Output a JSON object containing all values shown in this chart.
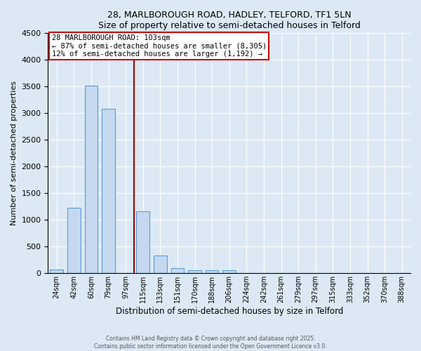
{
  "title": "28, MARLBOROUGH ROAD, HADLEY, TELFORD, TF1 5LN",
  "subtitle": "Size of property relative to semi-detached houses in Telford",
  "xlabel": "Distribution of semi-detached houses by size in Telford",
  "ylabel": "Number of semi-detached properties",
  "categories": [
    "24sqm",
    "42sqm",
    "60sqm",
    "79sqm",
    "97sqm",
    "115sqm",
    "133sqm",
    "151sqm",
    "170sqm",
    "188sqm",
    "206sqm",
    "224sqm",
    "242sqm",
    "261sqm",
    "279sqm",
    "297sqm",
    "315sqm",
    "333sqm",
    "352sqm",
    "370sqm",
    "388sqm"
  ],
  "values": [
    75,
    1220,
    3510,
    3080,
    0,
    1165,
    330,
    95,
    60,
    55,
    55,
    0,
    0,
    0,
    0,
    0,
    0,
    0,
    0,
    0,
    0
  ],
  "bar_color": "#c5d8f0",
  "bar_edge_color": "#5b9bd5",
  "vline_color": "#a00000",
  "vline_x_index": 4,
  "annotation_title": "28 MARLBOROUGH ROAD: 103sqm",
  "annotation_line1": "← 87% of semi-detached houses are smaller (8,305)",
  "annotation_line2": "12% of semi-detached houses are larger (1,192) →",
  "annotation_box_facecolor": "#ffffff",
  "annotation_box_edgecolor": "#cc0000",
  "ylim": [
    0,
    4500
  ],
  "yticks": [
    0,
    500,
    1000,
    1500,
    2000,
    2500,
    3000,
    3500,
    4000,
    4500
  ],
  "footnote1": "Contains HM Land Registry data © Crown copyright and database right 2025.",
  "footnote2": "Contains public sector information licensed under the Open Government Licence v3.0.",
  "fig_facecolor": "#dce9f5",
  "plot_facecolor": "#dce9f5",
  "grid_color": "#ffffff",
  "bar_width": 0.75
}
